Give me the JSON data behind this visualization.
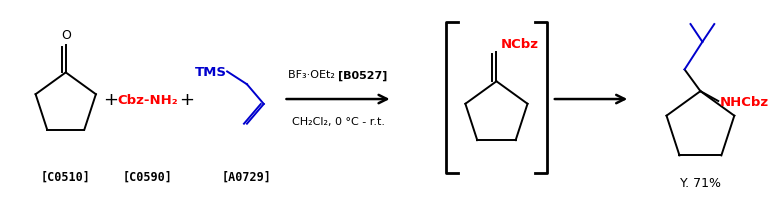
{
  "background_color": "#ffffff",
  "figure_width": 7.83,
  "figure_height": 2.05,
  "dpi": 100,
  "black": "#000000",
  "red": "#ff0000",
  "blue": "#0000cd",
  "reagent_line1_normal": "BF₃·OEt₂ ",
  "reagent_line1_bold": "[B0527]",
  "reagent_line2": "CH₂Cl₂, 0 °C - r.t.",
  "label_c0510": "[C0510]",
  "label_c0590": "[C0590]",
  "label_a0729": "[A0729]",
  "label_yield": "Y. 71%",
  "cbz_nh2": "Cbz-NH₂",
  "tms_label": "TMS",
  "ncbz_label": "NCbz",
  "nhcbz_label": "NHCbz"
}
